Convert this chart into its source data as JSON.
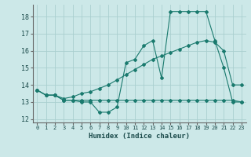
{
  "xlabel": "Humidex (Indice chaleur)",
  "bg_color": "#cce8e8",
  "line_color": "#1a7a6e",
  "grid_color": "#aacfcf",
  "xlim": [
    -0.5,
    23.5
  ],
  "ylim": [
    11.8,
    18.7
  ],
  "yticks": [
    12,
    13,
    14,
    15,
    16,
    17,
    18
  ],
  "xticks": [
    0,
    1,
    2,
    3,
    4,
    5,
    6,
    7,
    8,
    9,
    10,
    11,
    12,
    13,
    14,
    15,
    16,
    17,
    18,
    19,
    20,
    21,
    22,
    23
  ],
  "line1_x": [
    0,
    1,
    2,
    3,
    4,
    5,
    6,
    7,
    8,
    9,
    10,
    11,
    12,
    13,
    14,
    15,
    16,
    17,
    18,
    19,
    20,
    21,
    22,
    23
  ],
  "line1_y": [
    13.7,
    13.4,
    13.4,
    13.1,
    13.1,
    13.0,
    13.0,
    12.4,
    12.4,
    12.7,
    15.3,
    15.5,
    16.3,
    16.6,
    14.4,
    18.3,
    18.3,
    18.3,
    18.3,
    18.3,
    16.6,
    15.0,
    13.0,
    13.0
  ],
  "line2_x": [
    0,
    1,
    2,
    3,
    4,
    5,
    6,
    7,
    8,
    9,
    10,
    11,
    12,
    13,
    14,
    15,
    16,
    17,
    18,
    19,
    20,
    21,
    22,
    23
  ],
  "line2_y": [
    13.7,
    13.4,
    13.4,
    13.2,
    13.3,
    13.5,
    13.6,
    13.8,
    14.0,
    14.3,
    14.6,
    14.9,
    15.2,
    15.5,
    15.7,
    15.9,
    16.1,
    16.3,
    16.5,
    16.6,
    16.5,
    16.0,
    14.0,
    14.0
  ],
  "line3_x": [
    0,
    1,
    2,
    3,
    4,
    5,
    6,
    7,
    8,
    9,
    10,
    11,
    12,
    13,
    14,
    15,
    16,
    17,
    18,
    19,
    20,
    21,
    22,
    23
  ],
  "line3_y": [
    13.7,
    13.4,
    13.4,
    13.1,
    13.1,
    13.1,
    13.1,
    13.1,
    13.1,
    13.1,
    13.1,
    13.1,
    13.1,
    13.1,
    13.1,
    13.1,
    13.1,
    13.1,
    13.1,
    13.1,
    13.1,
    13.1,
    13.1,
    13.0
  ],
  "xlabel_fontsize": 6.5,
  "tick_fontsize": 5.5
}
